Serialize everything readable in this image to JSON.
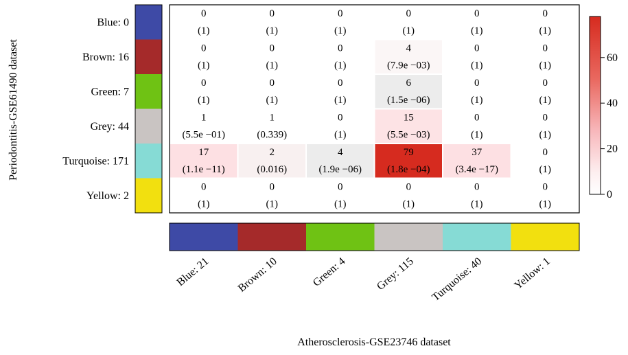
{
  "chart_data": {
    "type": "heatmap",
    "xlabel": "Atherosclerosis-GSE23746 dataset",
    "ylabel": "Periodontitis-GSE61490 dataset",
    "x_categories": [
      "Blue: 21",
      "Brown: 10",
      "Green: 4",
      "Grey: 115",
      "Turquoise: 40",
      "Yellow: 1"
    ],
    "y_categories": [
      "Blue: 0",
      "Brown: 16",
      "Green: 7",
      "Grey: 44",
      "Turquoise: 171",
      "Yellow: 2"
    ],
    "x_colors": [
      "#3e4aa6",
      "#a52a2a",
      "#6fc214",
      "#c9c4c2",
      "#86dbd5",
      "#f2e00f"
    ],
    "y_colors": [
      "#3e4aa6",
      "#a52a2a",
      "#6fc214",
      "#c9c4c2",
      "#86dbd5",
      "#f2e00f"
    ],
    "counts": [
      [
        0,
        0,
        0,
        0,
        0,
        0
      ],
      [
        0,
        0,
        0,
        4,
        0,
        0
      ],
      [
        0,
        0,
        0,
        6,
        0,
        0
      ],
      [
        1,
        1,
        0,
        15,
        0,
        0
      ],
      [
        17,
        2,
        4,
        79,
        37,
        0
      ],
      [
        0,
        0,
        0,
        0,
        0,
        0
      ]
    ],
    "p_labels": [
      [
        "(1)",
        "(1)",
        "(1)",
        "(1)",
        "(1)",
        "(1)"
      ],
      [
        "(1)",
        "(1)",
        "(1)",
        "(7.9e −03)",
        "(1)",
        "(1)"
      ],
      [
        "(1)",
        "(1)",
        "(1)",
        "(1.5e −06)",
        "(1)",
        "(1)"
      ],
      [
        "(5.5e −01)",
        "(0.339)",
        "(1)",
        "(5.5e −03)",
        "(1)",
        "(1)"
      ],
      [
        "(1.1e −11)",
        "(0.016)",
        "(1.9e −06)",
        "(1.8e −04)",
        "(3.4e −17)",
        "(1)"
      ],
      [
        "(1)",
        "(1)",
        "(1)",
        "(1)",
        "(1)",
        "(1)"
      ]
    ],
    "cell_fill": [
      [
        0,
        0,
        0,
        0,
        0,
        0
      ],
      [
        0,
        0,
        0,
        2,
        0,
        0
      ],
      [
        0,
        0,
        0,
        5,
        0,
        0
      ],
      [
        0,
        0,
        0,
        13,
        0,
        0
      ],
      [
        13,
        3,
        5,
        76,
        12,
        0
      ],
      [
        0,
        0,
        0,
        0,
        0,
        0
      ]
    ],
    "colorbar": {
      "ticks": [
        0,
        20,
        40,
        60
      ],
      "range": [
        0,
        78
      ],
      "colors": [
        "#ffffff",
        "#e8e8e8",
        "#d62b1f"
      ]
    }
  }
}
